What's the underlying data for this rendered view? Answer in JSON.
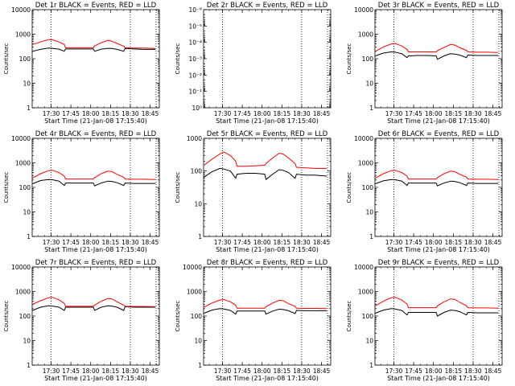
{
  "chart_data": [
    {
      "type": "line",
      "title": "Det 1r BLACK = Events, RED = LLD",
      "xlabel": "Start Time (21-Jan-08 17:15:40)",
      "ylabel": "Counts/sec",
      "x_ticks": [
        "17:30",
        "17:45",
        "18:00",
        "18:15",
        "18:30",
        "18:45"
      ],
      "y_ticks": [
        "1",
        "10",
        "100",
        "1000",
        "10000"
      ],
      "ylim": [
        1,
        10000
      ],
      "y_scale": "log",
      "vertical_markers": [
        "17:30",
        "18:30"
      ],
      "series": [
        {
          "color": "#000000",
          "x": [
            "17:16",
            "17:22",
            "17:28",
            "17:31",
            "17:36",
            "17:40",
            "17:41",
            "17:48",
            "17:55",
            "18:02",
            "18:03",
            "18:08",
            "18:13",
            "18:16",
            "18:20",
            "18:25",
            "18:26",
            "18:33",
            "18:40",
            "18:49"
          ],
          "values": [
            200,
            240,
            270,
            265,
            245,
            200,
            250,
            250,
            250,
            250,
            200,
            245,
            265,
            260,
            240,
            200,
            260,
            250,
            240,
            240
          ]
        },
        {
          "color": "#ff0000",
          "x": [
            "17:16",
            "17:22",
            "17:28",
            "17:31",
            "17:36",
            "17:40",
            "17:41",
            "17:48",
            "17:55",
            "18:02",
            "18:03",
            "18:08",
            "18:13",
            "18:16",
            "18:20",
            "18:25",
            "18:26",
            "18:33",
            "18:40",
            "18:49"
          ],
          "values": [
            380,
            480,
            600,
            600,
            480,
            380,
            280,
            280,
            280,
            280,
            330,
            450,
            560,
            520,
            420,
            320,
            280,
            270,
            270,
            260
          ]
        }
      ]
    },
    {
      "type": "line",
      "title": "Det 2r BLACK = Events, RED = LLD",
      "xlabel": "Start Time (21-Jan-08 17:15:40)",
      "ylabel": "Counts/sec",
      "x_ticks": [
        "17:30",
        "17:45",
        "18:00",
        "18:15",
        "18:30",
        "18:45"
      ],
      "y_ticks": [
        "10⁰",
        "10⁻¹",
        "10⁻²",
        "10⁻³",
        "10⁻⁴",
        "10⁻⁵",
        "10⁻⁶"
      ],
      "ylim": [
        1,
        1e-06
      ],
      "y_scale": "log",
      "vertical_markers": [
        "17:30",
        "18:30"
      ],
      "series": []
    },
    {
      "type": "line",
      "title": "Det 3r BLACK = Events, RED = LLD",
      "xlabel": "Start Time (21-Jan-08 17:15:40)",
      "ylabel": "Counts/sec",
      "x_ticks": [
        "17:30",
        "17:45",
        "18:00",
        "18:15",
        "18:30",
        "18:45"
      ],
      "y_ticks": [
        "1",
        "10",
        "100",
        "1000",
        "10000"
      ],
      "ylim": [
        1,
        10000
      ],
      "y_scale": "log",
      "vertical_markers": [
        "17:30",
        "18:30"
      ],
      "series": [
        {
          "color": "#000000",
          "x": [
            "17:16",
            "17:22",
            "17:28",
            "17:31",
            "17:36",
            "17:40",
            "17:41",
            "17:48",
            "17:55",
            "18:02",
            "18:03",
            "18:08",
            "18:13",
            "18:16",
            "18:20",
            "18:25",
            "18:26",
            "18:33",
            "18:40",
            "18:49"
          ],
          "values": [
            130,
            170,
            190,
            185,
            160,
            110,
            130,
            135,
            135,
            130,
            95,
            130,
            160,
            155,
            140,
            110,
            140,
            135,
            135,
            135
          ]
        },
        {
          "color": "#ff0000",
          "x": [
            "17:16",
            "17:22",
            "17:28",
            "17:31",
            "17:36",
            "17:40",
            "17:41",
            "17:48",
            "17:55",
            "18:02",
            "18:03",
            "18:08",
            "18:13",
            "18:16",
            "18:20",
            "18:25",
            "18:26",
            "18:33",
            "18:40",
            "18:49"
          ],
          "values": [
            200,
            300,
            400,
            420,
            330,
            240,
            190,
            190,
            190,
            190,
            210,
            290,
            380,
            360,
            280,
            220,
            190,
            185,
            185,
            180
          ]
        }
      ]
    },
    {
      "type": "line",
      "title": "Det 4r BLACK = Events, RED = LLD",
      "xlabel": "Start Time (21-Jan-08 17:15:40)",
      "ylabel": "Counts/sec",
      "x_ticks": [
        "17:30",
        "17:45",
        "18:00",
        "18:15",
        "18:30",
        "18:45"
      ],
      "y_ticks": [
        "1",
        "10",
        "100",
        "1000",
        "10000"
      ],
      "ylim": [
        1,
        10000
      ],
      "y_scale": "log",
      "vertical_markers": [
        "17:30",
        "18:30"
      ],
      "series": [
        {
          "color": "#000000",
          "x": [
            "17:16",
            "17:22",
            "17:28",
            "17:31",
            "17:36",
            "17:40",
            "17:41",
            "17:48",
            "17:55",
            "18:02",
            "18:03",
            "18:08",
            "18:13",
            "18:16",
            "18:20",
            "18:25",
            "18:26",
            "18:33",
            "18:40",
            "18:49"
          ],
          "values": [
            140,
            190,
            210,
            205,
            180,
            120,
            150,
            150,
            150,
            150,
            115,
            150,
            180,
            175,
            155,
            120,
            150,
            145,
            145,
            145
          ]
        },
        {
          "color": "#ff0000",
          "x": [
            "17:16",
            "17:22",
            "17:28",
            "17:31",
            "17:36",
            "17:40",
            "17:41",
            "17:48",
            "17:55",
            "18:02",
            "18:03",
            "18:08",
            "18:13",
            "18:16",
            "18:20",
            "18:25",
            "18:26",
            "18:33",
            "18:40",
            "18:49"
          ],
          "values": [
            240,
            360,
            480,
            500,
            400,
            290,
            220,
            220,
            220,
            220,
            250,
            360,
            460,
            440,
            340,
            260,
            220,
            215,
            215,
            210
          ]
        }
      ]
    },
    {
      "type": "line",
      "title": "Det 5r BLACK = Events, RED = LLD",
      "xlabel": "Start Time (21-Jan-08 17:15:40)",
      "ylabel": "Counts/sec",
      "x_ticks": [
        "17:30",
        "17:45",
        "18:00",
        "18:15",
        "18:30",
        "18:45"
      ],
      "y_ticks": [
        "1",
        "10",
        "100",
        "1000"
      ],
      "ylim": [
        1,
        1000
      ],
      "y_scale": "log",
      "vertical_markers": [
        "17:30",
        "18:30"
      ],
      "series": [
        {
          "color": "#000000",
          "x": [
            "17:16",
            "17:22",
            "17:28",
            "17:31",
            "17:36",
            "17:40",
            "17:41",
            "17:48",
            "17:55",
            "18:02",
            "18:03",
            "18:08",
            "18:13",
            "18:16",
            "18:20",
            "18:25",
            "18:26",
            "18:33",
            "18:40",
            "18:49"
          ],
          "values": [
            65,
            95,
            120,
            115,
            100,
            60,
            80,
            85,
            85,
            80,
            55,
            80,
            110,
            105,
            90,
            60,
            80,
            75,
            75,
            70
          ]
        },
        {
          "color": "#ff0000",
          "x": [
            "17:16",
            "17:22",
            "17:28",
            "17:31",
            "17:36",
            "17:40",
            "17:41",
            "17:48",
            "17:55",
            "18:02",
            "18:03",
            "18:08",
            "18:13",
            "18:16",
            "18:20",
            "18:25",
            "18:26",
            "18:33",
            "18:40",
            "18:49"
          ],
          "values": [
            150,
            230,
            330,
            380,
            300,
            200,
            140,
            140,
            145,
            150,
            170,
            250,
            350,
            330,
            250,
            170,
            130,
            125,
            120,
            120
          ]
        }
      ]
    },
    {
      "type": "line",
      "title": "Det 6r BLACK = Events, RED = LLD",
      "xlabel": "Start Time (21-Jan-08 17:15:40)",
      "ylabel": "Counts/sec",
      "x_ticks": [
        "17:30",
        "17:45",
        "18:00",
        "18:15",
        "18:30",
        "18:45"
      ],
      "y_ticks": [
        "1",
        "10",
        "100",
        "1000",
        "10000"
      ],
      "ylim": [
        1,
        10000
      ],
      "y_scale": "log",
      "vertical_markers": [
        "17:30",
        "18:30"
      ],
      "series": [
        {
          "color": "#000000",
          "x": [
            "17:16",
            "17:22",
            "17:28",
            "17:31",
            "17:36",
            "17:40",
            "17:41",
            "17:48",
            "17:55",
            "18:02",
            "18:03",
            "18:08",
            "18:13",
            "18:16",
            "18:20",
            "18:25",
            "18:26",
            "18:33",
            "18:40",
            "18:49"
          ],
          "values": [
            140,
            185,
            210,
            205,
            180,
            120,
            150,
            150,
            150,
            150,
            115,
            150,
            180,
            175,
            155,
            120,
            150,
            145,
            145,
            145
          ]
        },
        {
          "color": "#ff0000",
          "x": [
            "17:16",
            "17:22",
            "17:28",
            "17:31",
            "17:36",
            "17:40",
            "17:41",
            "17:48",
            "17:55",
            "18:02",
            "18:03",
            "18:08",
            "18:13",
            "18:16",
            "18:20",
            "18:25",
            "18:26",
            "18:33",
            "18:40",
            "18:49"
          ],
          "values": [
            240,
            360,
            480,
            500,
            400,
            290,
            220,
            220,
            220,
            220,
            250,
            360,
            460,
            440,
            340,
            260,
            220,
            215,
            215,
            210
          ]
        }
      ]
    },
    {
      "type": "line",
      "title": "Det 7r BLACK = Events, RED = LLD",
      "xlabel": "Start Time (21-Jan-08 17:15:40)",
      "ylabel": "Counts/sec",
      "x_ticks": [
        "17:30",
        "17:45",
        "18:00",
        "18:15",
        "18:30",
        "18:45"
      ],
      "y_ticks": [
        "1",
        "10",
        "100",
        "1000",
        "10000"
      ],
      "ylim": [
        1,
        10000
      ],
      "y_scale": "log",
      "vertical_markers": [
        "17:30",
        "18:30"
      ],
      "series": [
        {
          "color": "#000000",
          "x": [
            "17:16",
            "17:22",
            "17:28",
            "17:31",
            "17:36",
            "17:40",
            "17:41",
            "17:48",
            "17:55",
            "18:02",
            "18:03",
            "18:08",
            "18:13",
            "18:16",
            "18:20",
            "18:25",
            "18:26",
            "18:33",
            "18:40",
            "18:49"
          ],
          "values": [
            170,
            230,
            260,
            255,
            230,
            170,
            230,
            230,
            230,
            230,
            170,
            230,
            260,
            255,
            230,
            170,
            240,
            230,
            230,
            230
          ]
        },
        {
          "color": "#ff0000",
          "x": [
            "17:16",
            "17:22",
            "17:28",
            "17:31",
            "17:36",
            "17:40",
            "17:41",
            "17:48",
            "17:55",
            "18:02",
            "18:03",
            "18:08",
            "18:13",
            "18:16",
            "18:20",
            "18:25",
            "18:26",
            "18:33",
            "18:40",
            "18:49"
          ],
          "values": [
            300,
            420,
            560,
            580,
            460,
            330,
            250,
            250,
            250,
            250,
            280,
            400,
            520,
            500,
            380,
            280,
            250,
            245,
            245,
            240
          ]
        }
      ]
    },
    {
      "type": "line",
      "title": "Det 8r BLACK = Events, RED = LLD",
      "xlabel": "Start Time (21-Jan-08 17:15:40)",
      "ylabel": "Counts/sec",
      "x_ticks": [
        "17:30",
        "17:45",
        "18:00",
        "18:15",
        "18:30",
        "18:45"
      ],
      "y_ticks": [
        "1",
        "10",
        "100",
        "1000",
        "10000"
      ],
      "ylim": [
        1,
        10000
      ],
      "y_scale": "log",
      "vertical_markers": [
        "17:30",
        "18:30"
      ],
      "series": [
        {
          "color": "#000000",
          "x": [
            "17:16",
            "17:22",
            "17:28",
            "17:31",
            "17:36",
            "17:40",
            "17:41",
            "17:48",
            "17:55",
            "18:02",
            "18:03",
            "18:08",
            "18:13",
            "18:16",
            "18:20",
            "18:25",
            "18:26",
            "18:33",
            "18:40",
            "18:49"
          ],
          "values": [
            130,
            175,
            200,
            195,
            170,
            120,
            160,
            160,
            160,
            160,
            120,
            160,
            190,
            185,
            165,
            125,
            170,
            165,
            165,
            165
          ]
        },
        {
          "color": "#ff0000",
          "x": [
            "17:16",
            "17:22",
            "17:28",
            "17:31",
            "17:36",
            "17:40",
            "17:41",
            "17:48",
            "17:55",
            "18:02",
            "18:03",
            "18:08",
            "18:13",
            "18:16",
            "18:20",
            "18:25",
            "18:26",
            "18:33",
            "18:40",
            "18:49"
          ],
          "values": [
            230,
            340,
            450,
            470,
            380,
            280,
            210,
            210,
            210,
            210,
            240,
            340,
            440,
            420,
            320,
            250,
            210,
            205,
            205,
            200
          ]
        }
      ]
    },
    {
      "type": "line",
      "title": "Det 9r BLACK = Events, RED = LLD",
      "xlabel": "Start Time (21-Jan-08 17:15:40)",
      "ylabel": "Counts/sec",
      "x_ticks": [
        "17:30",
        "17:45",
        "18:00",
        "18:15",
        "18:30",
        "18:45"
      ],
      "y_ticks": [
        "1",
        "10",
        "100",
        "1000",
        "10000"
      ],
      "ylim": [
        1,
        10000
      ],
      "y_scale": "log",
      "vertical_markers": [
        "17:30",
        "18:30"
      ],
      "series": [
        {
          "color": "#000000",
          "x": [
            "17:16",
            "17:22",
            "17:28",
            "17:31",
            "17:36",
            "17:40",
            "17:41",
            "17:48",
            "17:55",
            "18:02",
            "18:03",
            "18:08",
            "18:13",
            "18:16",
            "18:20",
            "18:25",
            "18:26",
            "18:33",
            "18:40",
            "18:49"
          ],
          "values": [
            130,
            175,
            200,
            195,
            170,
            110,
            140,
            140,
            140,
            140,
            100,
            140,
            175,
            170,
            150,
            110,
            140,
            135,
            135,
            135
          ]
        },
        {
          "color": "#ff0000",
          "x": [
            "17:16",
            "17:22",
            "17:28",
            "17:31",
            "17:36",
            "17:40",
            "17:41",
            "17:48",
            "17:55",
            "18:02",
            "18:03",
            "18:08",
            "18:13",
            "18:16",
            "18:20",
            "18:25",
            "18:26",
            "18:33",
            "18:40",
            "18:49"
          ],
          "values": [
            260,
            400,
            560,
            580,
            450,
            310,
            220,
            220,
            220,
            220,
            260,
            380,
            500,
            480,
            360,
            260,
            220,
            215,
            215,
            210
          ]
        }
      ]
    }
  ]
}
